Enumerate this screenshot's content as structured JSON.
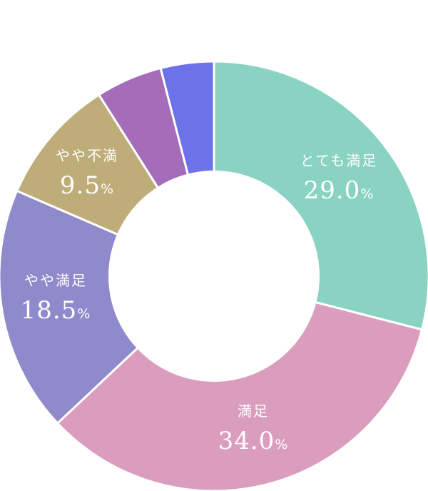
{
  "chart_data": {
    "type": "pie",
    "donut": true,
    "unit": "%",
    "start": "top",
    "direction": "clockwise",
    "slices": [
      {
        "label": "とても満足",
        "value": 29.0,
        "display": "29.0",
        "color": "#8ad3c3"
      },
      {
        "label": "満足",
        "value": 34.0,
        "display": "34.0",
        "color": "#db9dbd"
      },
      {
        "label": "やや満足",
        "value": 18.5,
        "display": "18.5",
        "color": "#8f8acb"
      },
      {
        "label": "やや不満",
        "value": 9.5,
        "display": "9.5",
        "color": "#bead78"
      },
      {
        "label": "",
        "value": 5.0,
        "display": "",
        "color": "#a56db9"
      },
      {
        "label": "",
        "value": 4.0,
        "display": "",
        "color": "#6e72e8"
      }
    ]
  }
}
